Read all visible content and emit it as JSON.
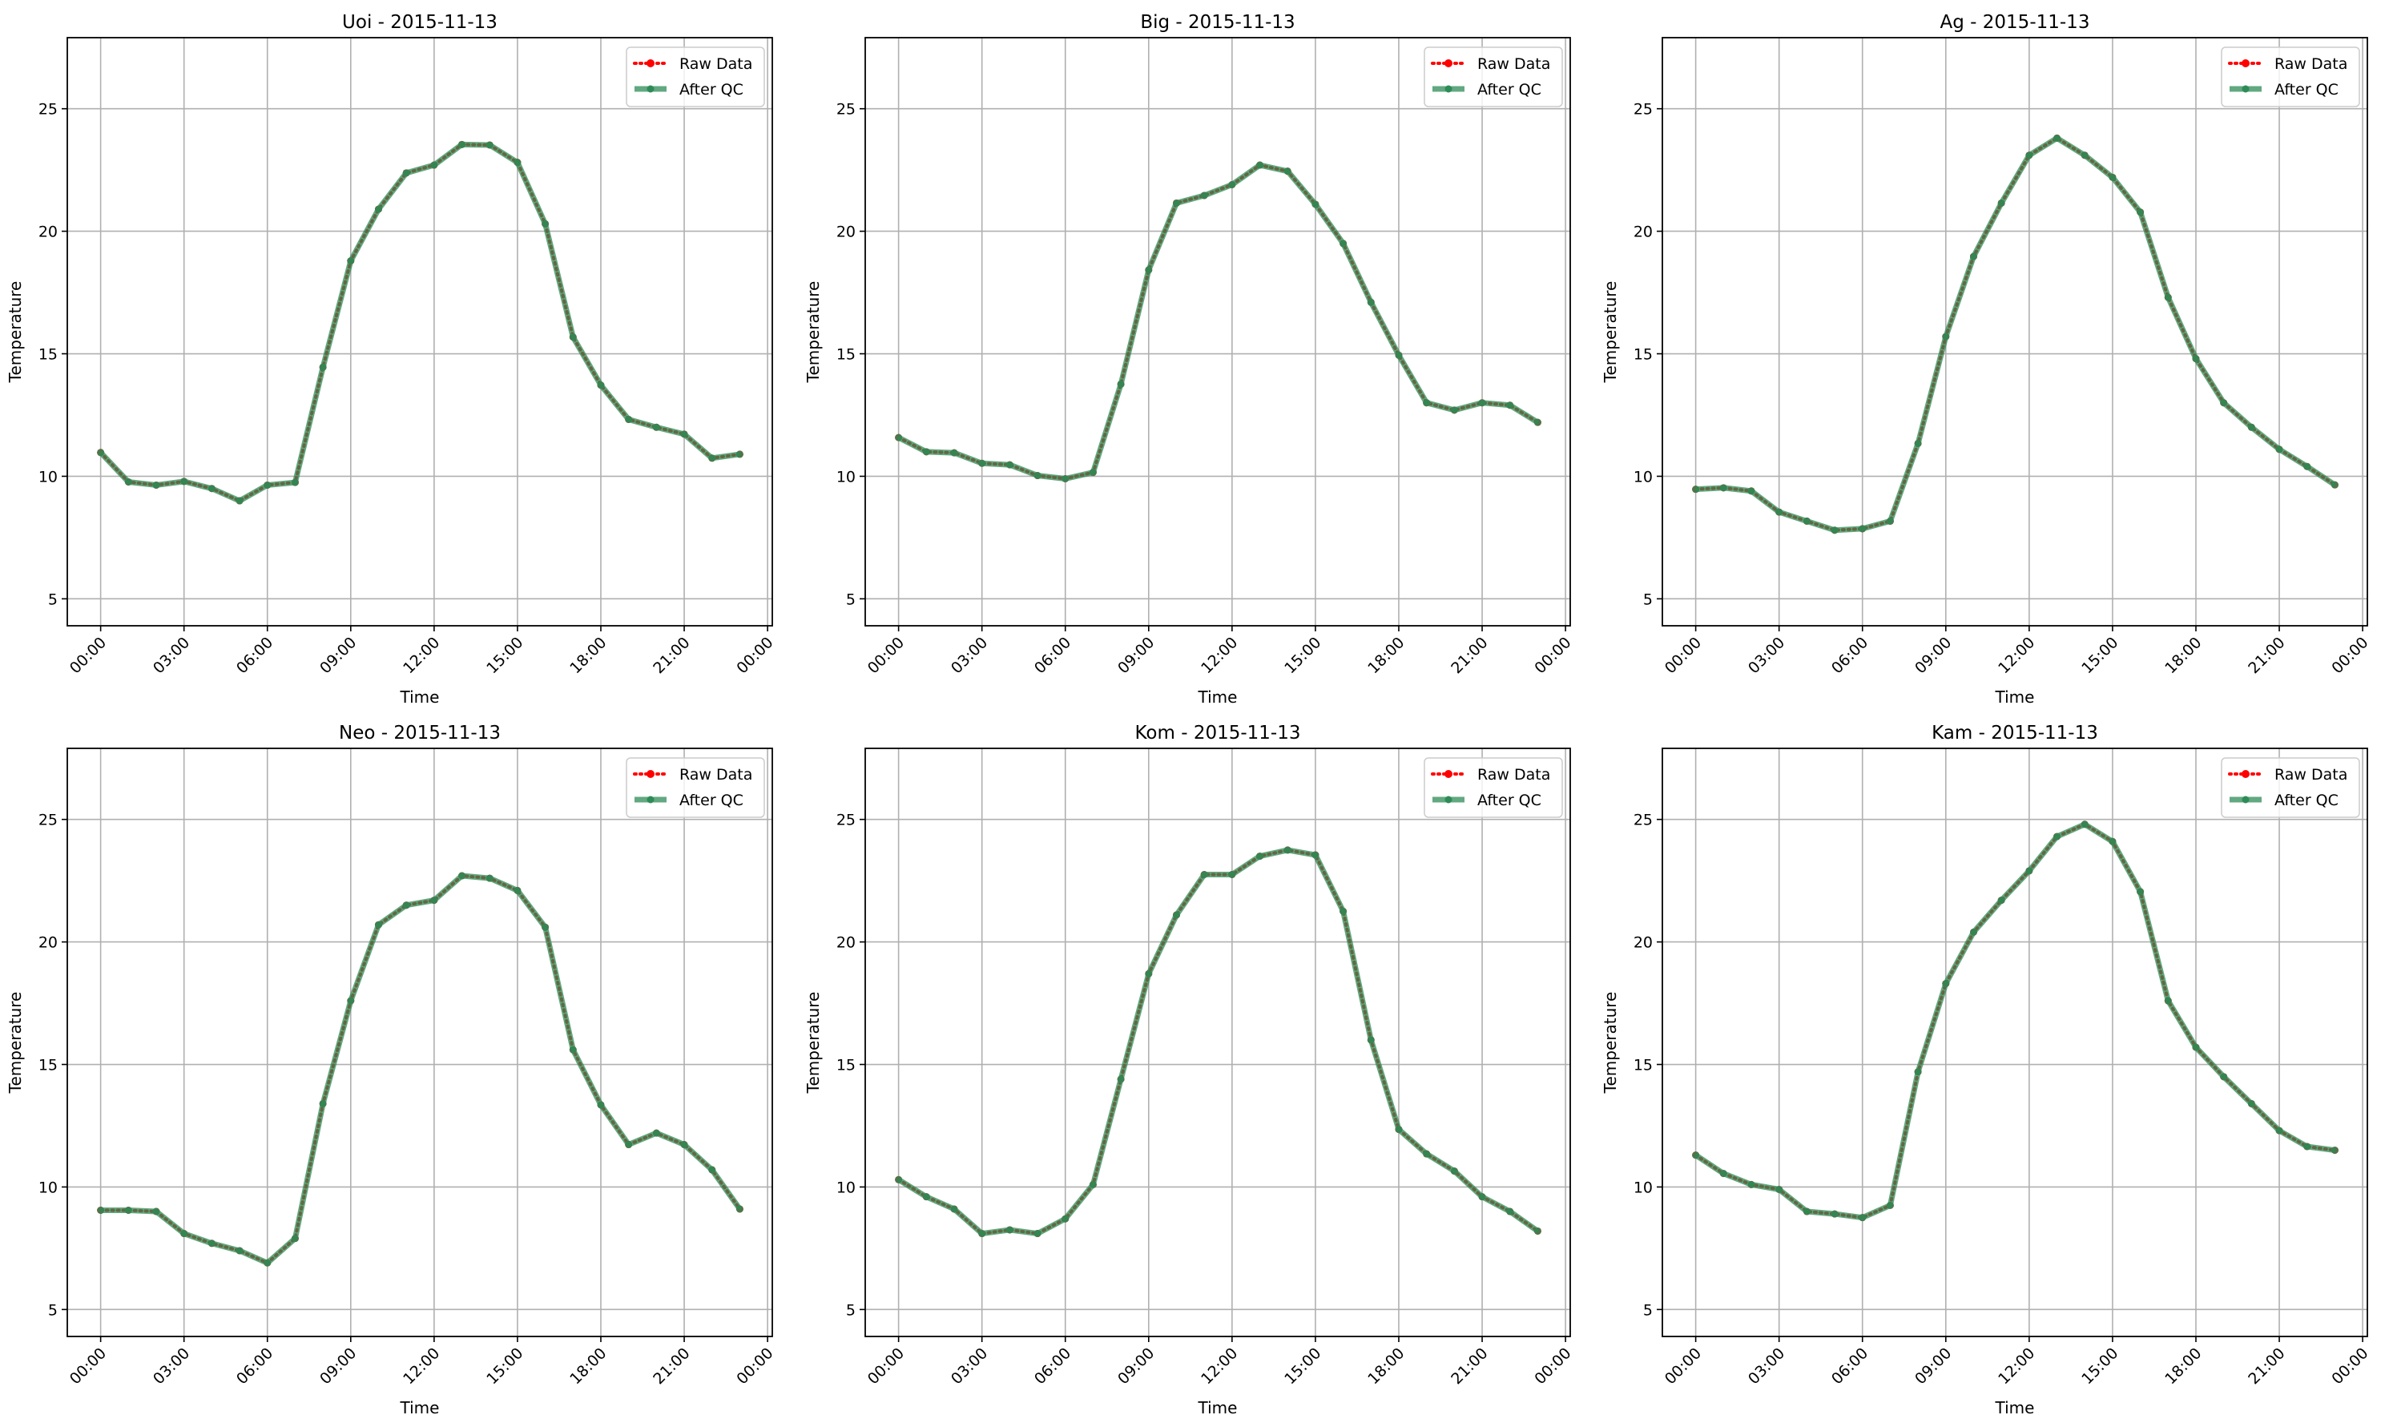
{
  "colors": {
    "raw": "#ff0000",
    "qc": "#2e8b57",
    "grid": "#b0b0b0",
    "axis": "#000000"
  },
  "chart_data": [
    {
      "type": "line",
      "title": "Uoi - 2015-11-13",
      "xlabel": "Time",
      "ylabel": "Temperature",
      "ylim": [
        3.9,
        27.9
      ],
      "xlim_hours": [
        -1.2,
        24.17
      ],
      "grid": true,
      "legend": "top-right",
      "xticks": [
        "00:00",
        "03:00",
        "06:00",
        "09:00",
        "12:00",
        "15:00",
        "18:00",
        "21:00",
        "00:00"
      ],
      "yticks": [
        "5",
        "10",
        "15",
        "20",
        "25"
      ],
      "hours": [
        0,
        1,
        2,
        3,
        4,
        5,
        6,
        7,
        8,
        9,
        10,
        11,
        12,
        13,
        14,
        15,
        16,
        17,
        18,
        19,
        20,
        21,
        22,
        23
      ],
      "series": [
        {
          "name": "Raw Data",
          "values": [
            10.97,
            9.77,
            9.64,
            9.79,
            9.5,
            9.0,
            9.64,
            9.75,
            14.45,
            18.79,
            20.9,
            22.38,
            22.7,
            23.54,
            23.52,
            22.81,
            20.3,
            15.68,
            13.72,
            12.32,
            12.0,
            11.72,
            10.74,
            10.9
          ]
        },
        {
          "name": "After QC",
          "values": [
            10.97,
            9.77,
            9.64,
            9.79,
            9.5,
            9.0,
            9.64,
            9.75,
            14.45,
            18.79,
            20.9,
            22.38,
            22.7,
            23.54,
            23.52,
            22.81,
            20.3,
            15.68,
            13.72,
            12.32,
            12.0,
            11.72,
            10.74,
            10.9
          ]
        }
      ]
    },
    {
      "type": "line",
      "title": "Big - 2015-11-13",
      "xlabel": "Time",
      "ylabel": "Temperature",
      "ylim": [
        3.9,
        27.9
      ],
      "xlim_hours": [
        -1.2,
        24.17
      ],
      "grid": true,
      "legend": "top-right",
      "xticks": [
        "00:00",
        "03:00",
        "06:00",
        "09:00",
        "12:00",
        "15:00",
        "18:00",
        "21:00",
        "00:00"
      ],
      "yticks": [
        "5",
        "10",
        "15",
        "20",
        "25"
      ],
      "hours": [
        0,
        1,
        2,
        3,
        4,
        5,
        6,
        7,
        8,
        9,
        10,
        11,
        12,
        13,
        14,
        15,
        16,
        17,
        18,
        19,
        20,
        21,
        22,
        23
      ],
      "series": [
        {
          "name": "Raw Data",
          "values": [
            11.58,
            11.0,
            10.96,
            10.53,
            10.47,
            10.03,
            9.9,
            10.16,
            13.76,
            18.42,
            21.15,
            21.46,
            21.9,
            22.7,
            22.45,
            21.1,
            19.5,
            17.1,
            14.94,
            13.0,
            12.7,
            13.0,
            12.9,
            12.2
          ]
        },
        {
          "name": "After QC",
          "values": [
            11.58,
            11.0,
            10.96,
            10.53,
            10.47,
            10.03,
            9.9,
            10.16,
            13.76,
            18.42,
            21.15,
            21.46,
            21.9,
            22.7,
            22.45,
            21.1,
            19.5,
            17.1,
            14.94,
            13.0,
            12.7,
            13.0,
            12.9,
            12.2
          ]
        }
      ]
    },
    {
      "type": "line",
      "title": "Ag - 2015-11-13",
      "xlabel": "Time",
      "ylabel": "Temperature",
      "ylim": [
        3.9,
        27.9
      ],
      "xlim_hours": [
        -1.2,
        24.17
      ],
      "grid": true,
      "legend": "top-right",
      "xticks": [
        "00:00",
        "03:00",
        "06:00",
        "09:00",
        "12:00",
        "15:00",
        "18:00",
        "21:00",
        "00:00"
      ],
      "yticks": [
        "5",
        "10",
        "15",
        "20",
        "25"
      ],
      "hours": [
        0,
        1,
        2,
        3,
        4,
        5,
        6,
        7,
        8,
        9,
        10,
        11,
        12,
        13,
        14,
        15,
        16,
        17,
        18,
        19,
        20,
        21,
        22,
        23
      ],
      "series": [
        {
          "name": "Raw Data",
          "values": [
            9.47,
            9.53,
            9.4,
            8.54,
            8.17,
            7.8,
            7.86,
            8.17,
            11.34,
            15.7,
            18.97,
            21.15,
            23.1,
            23.8,
            23.1,
            22.2,
            20.78,
            17.3,
            14.8,
            13.0,
            12.0,
            11.1,
            10.4,
            9.65
          ]
        },
        {
          "name": "After QC",
          "values": [
            9.47,
            9.53,
            9.4,
            8.54,
            8.17,
            7.8,
            7.86,
            8.17,
            11.34,
            15.7,
            18.97,
            21.15,
            23.1,
            23.8,
            23.1,
            22.2,
            20.78,
            17.3,
            14.8,
            13.0,
            12.0,
            11.1,
            10.4,
            9.65
          ]
        }
      ]
    },
    {
      "type": "line",
      "title": "Neo - 2015-11-13",
      "xlabel": "Time",
      "ylabel": "Temperature",
      "ylim": [
        3.9,
        27.9
      ],
      "xlim_hours": [
        -1.2,
        24.17
      ],
      "grid": true,
      "legend": "top-right",
      "xticks": [
        "00:00",
        "03:00",
        "06:00",
        "09:00",
        "12:00",
        "15:00",
        "18:00",
        "21:00",
        "00:00"
      ],
      "yticks": [
        "5",
        "10",
        "15",
        "20",
        "25"
      ],
      "hours": [
        0,
        1,
        2,
        3,
        4,
        5,
        6,
        7,
        8,
        9,
        10,
        11,
        12,
        13,
        14,
        15,
        16,
        17,
        18,
        19,
        20,
        21,
        22,
        23
      ],
      "series": [
        {
          "name": "Raw Data",
          "values": [
            9.05,
            9.05,
            9.0,
            8.1,
            7.7,
            7.4,
            6.9,
            7.9,
            13.4,
            17.6,
            20.7,
            21.5,
            21.7,
            22.7,
            22.6,
            22.1,
            20.6,
            15.6,
            13.35,
            11.73,
            12.2,
            11.73,
            10.7,
            9.1
          ]
        },
        {
          "name": "After QC",
          "values": [
            9.05,
            9.05,
            9.0,
            8.1,
            7.7,
            7.4,
            6.9,
            7.9,
            13.4,
            17.6,
            20.7,
            21.5,
            21.7,
            22.7,
            22.6,
            22.1,
            20.6,
            15.6,
            13.35,
            11.73,
            12.2,
            11.73,
            10.7,
            9.1
          ]
        }
      ]
    },
    {
      "type": "line",
      "title": "Kom - 2015-11-13",
      "xlabel": "Time",
      "ylabel": "Temperature",
      "ylim": [
        3.9,
        27.9
      ],
      "xlim_hours": [
        -1.2,
        24.17
      ],
      "grid": true,
      "legend": "top-right",
      "xticks": [
        "00:00",
        "03:00",
        "06:00",
        "09:00",
        "12:00",
        "15:00",
        "18:00",
        "21:00",
        "00:00"
      ],
      "yticks": [
        "5",
        "10",
        "15",
        "20",
        "25"
      ],
      "hours": [
        0,
        1,
        2,
        3,
        4,
        5,
        6,
        7,
        8,
        9,
        10,
        11,
        12,
        13,
        14,
        15,
        16,
        17,
        18,
        19,
        20,
        21,
        22,
        23
      ],
      "series": [
        {
          "name": "Raw Data",
          "values": [
            10.3,
            9.6,
            9.1,
            8.1,
            8.25,
            8.1,
            8.7,
            10.1,
            14.4,
            18.7,
            21.1,
            22.75,
            22.75,
            23.5,
            23.75,
            23.55,
            21.25,
            16.0,
            12.35,
            11.35,
            10.65,
            9.6,
            9.0,
            8.2
          ]
        },
        {
          "name": "After QC",
          "values": [
            10.3,
            9.6,
            9.1,
            8.1,
            8.25,
            8.1,
            8.7,
            10.1,
            14.4,
            18.7,
            21.1,
            22.75,
            22.75,
            23.5,
            23.75,
            23.55,
            21.25,
            16.0,
            12.35,
            11.35,
            10.65,
            9.6,
            9.0,
            8.2
          ]
        }
      ]
    },
    {
      "type": "line",
      "title": "Kam - 2015-11-13",
      "xlabel": "Time",
      "ylabel": "Temperature",
      "ylim": [
        3.9,
        27.9
      ],
      "xlim_hours": [
        -1.2,
        24.17
      ],
      "grid": true,
      "legend": "top-right",
      "xticks": [
        "00:00",
        "03:00",
        "06:00",
        "09:00",
        "12:00",
        "15:00",
        "18:00",
        "21:00",
        "00:00"
      ],
      "yticks": [
        "5",
        "10",
        "15",
        "20",
        "25"
      ],
      "hours": [
        0,
        1,
        2,
        3,
        4,
        5,
        6,
        7,
        8,
        9,
        10,
        11,
        12,
        13,
        14,
        15,
        16,
        17,
        18,
        19,
        20,
        21,
        22,
        23
      ],
      "series": [
        {
          "name": "Raw Data",
          "values": [
            11.3,
            10.55,
            10.1,
            9.9,
            9.0,
            8.9,
            8.75,
            9.25,
            14.7,
            18.3,
            20.4,
            21.7,
            22.9,
            24.3,
            24.8,
            24.1,
            22.05,
            17.6,
            15.7,
            14.5,
            13.4,
            12.3,
            11.65,
            11.5
          ]
        },
        {
          "name": "After QC",
          "values": [
            11.3,
            10.55,
            10.1,
            9.9,
            9.0,
            8.9,
            8.75,
            9.25,
            14.7,
            18.3,
            20.4,
            21.7,
            22.9,
            24.3,
            24.8,
            24.1,
            22.05,
            17.6,
            15.7,
            14.5,
            13.4,
            12.3,
            11.65,
            11.5
          ]
        }
      ]
    }
  ]
}
